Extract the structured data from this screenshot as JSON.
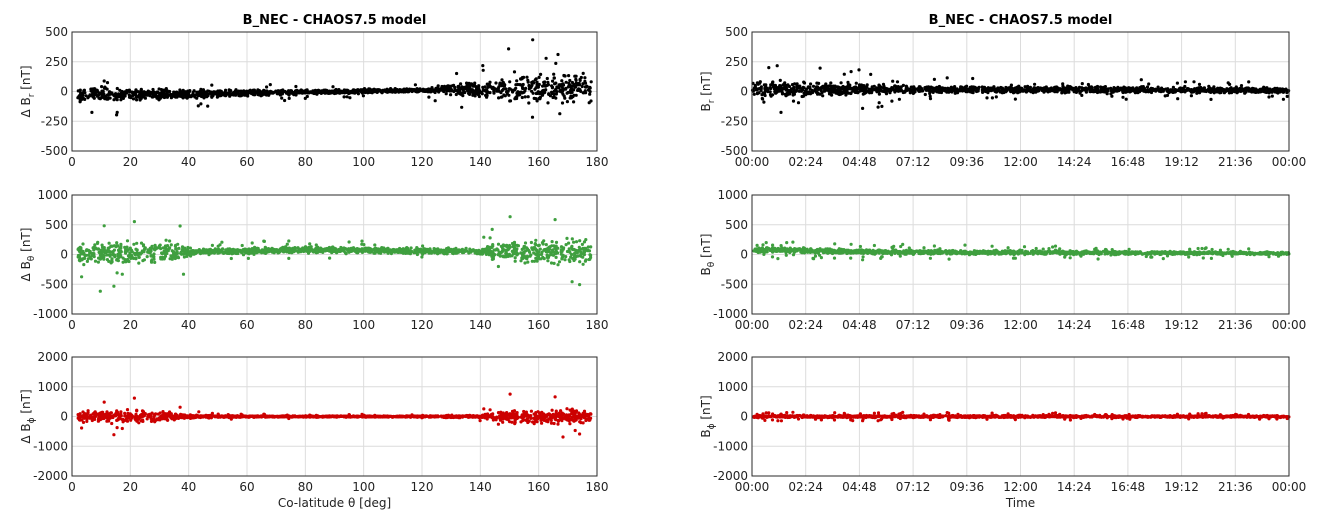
{
  "chart_data": [
    {
      "type": "scatter",
      "panel": "left-1",
      "title": "B_NEC - CHAOS7.5 model",
      "ylabel_main": "Δ B",
      "ylabel_sub": "r",
      "ylabel_unit": " [nT]",
      "xlabel": "",
      "xlim": [
        0,
        180
      ],
      "ylim": [
        -500,
        500
      ],
      "xticks": [
        "0",
        "20",
        "40",
        "60",
        "80",
        "100",
        "120",
        "140",
        "160",
        "180"
      ],
      "yticks": [
        "-500",
        "-250",
        "0",
        "250",
        "500"
      ],
      "color": "#000000",
      "spread": [
        [
          2,
          80
        ],
        [
          40,
          50
        ],
        [
          60,
          30
        ],
        [
          120,
          20
        ],
        [
          140,
          90
        ],
        [
          150,
          140
        ],
        [
          160,
          170
        ],
        [
          180,
          140
        ]
      ],
      "bias": [
        [
          2,
          -30
        ],
        [
          40,
          -20
        ],
        [
          120,
          10
        ],
        [
          180,
          30
        ]
      ],
      "spike_prob": 0.02,
      "x_range": [
        2,
        178
      ]
    },
    {
      "type": "scatter",
      "panel": "left-2",
      "title": "",
      "ylabel_main": "Δ B",
      "ylabel_sub": "θ",
      "ylabel_unit": " [nT]",
      "xlabel": "",
      "xlim": [
        0,
        180
      ],
      "ylim": [
        -1000,
        1000
      ],
      "xticks": [
        "0",
        "20",
        "40",
        "60",
        "80",
        "100",
        "120",
        "140",
        "160",
        "180"
      ],
      "yticks": [
        "-1000",
        "-500",
        "0",
        "500",
        "1000"
      ],
      "color": "#3f9f3f",
      "spread": [
        [
          2,
          260
        ],
        [
          20,
          250
        ],
        [
          35,
          220
        ],
        [
          42,
          60
        ],
        [
          140,
          70
        ],
        [
          145,
          200
        ],
        [
          160,
          300
        ],
        [
          178,
          250
        ]
      ],
      "bias": [
        [
          2,
          20
        ],
        [
          40,
          40
        ],
        [
          80,
          80
        ],
        [
          140,
          50
        ],
        [
          178,
          40
        ]
      ],
      "spike_prob": 0.02,
      "x_range": [
        2,
        178
      ]
    },
    {
      "type": "scatter",
      "panel": "left-3",
      "title": "",
      "ylabel_main": "Δ B",
      "ylabel_sub": "ϕ",
      "ylabel_unit": " [nT]",
      "xlabel": "Co-latitude θ [deg]",
      "xlim": [
        0,
        180
      ],
      "ylim": [
        -2000,
        2000
      ],
      "xticks": [
        "0",
        "20",
        "40",
        "60",
        "80",
        "100",
        "120",
        "140",
        "160",
        "180"
      ],
      "yticks": [
        "-2000",
        "-1000",
        "0",
        "1000",
        "2000"
      ],
      "color": "#cc0000",
      "spread": [
        [
          2,
          250
        ],
        [
          25,
          300
        ],
        [
          40,
          80
        ],
        [
          60,
          30
        ],
        [
          120,
          30
        ],
        [
          140,
          80
        ],
        [
          150,
          300
        ],
        [
          165,
          350
        ],
        [
          178,
          250
        ]
      ],
      "bias": [
        [
          2,
          0
        ],
        [
          180,
          0
        ]
      ],
      "spike_prob": 0.02,
      "x_range": [
        2,
        178
      ]
    },
    {
      "type": "scatter",
      "panel": "right-1",
      "title": "B_NEC - CHAOS7.5 model",
      "ylabel_main": "B",
      "ylabel_sub": "r",
      "ylabel_unit": " [nT]",
      "xlabel": "",
      "xlim": [
        0,
        24
      ],
      "ylim": [
        -500,
        500
      ],
      "xticks": [
        "00:00",
        "02:24",
        "04:48",
        "07:12",
        "09:36",
        "12:00",
        "14:24",
        "16:48",
        "19:12",
        "21:36",
        "00:00"
      ],
      "yticks": [
        "-500",
        "-250",
        "0",
        "250",
        "500"
      ],
      "color": "#000000",
      "spread": [
        [
          0,
          90
        ],
        [
          4,
          70
        ],
        [
          8,
          40
        ],
        [
          24,
          30
        ]
      ],
      "bias": [
        [
          0,
          20
        ],
        [
          24,
          10
        ]
      ],
      "spike_prob": 0.03,
      "x_range": [
        0,
        24
      ]
    },
    {
      "type": "scatter",
      "panel": "right-2",
      "title": "",
      "ylabel_main": "B",
      "ylabel_sub": "θ",
      "ylabel_unit": " [nT]",
      "xlabel": "",
      "xlim": [
        0,
        24
      ],
      "ylim": [
        -1000,
        1000
      ],
      "xticks": [
        "00:00",
        "02:24",
        "04:48",
        "07:12",
        "09:36",
        "12:00",
        "14:24",
        "16:48",
        "19:12",
        "21:36",
        "00:00"
      ],
      "yticks": [
        "-1000",
        "-500",
        "0",
        "500",
        "1000"
      ],
      "color": "#3f9f3f",
      "spread": [
        [
          0,
          60
        ],
        [
          24,
          30
        ]
      ],
      "bias": [
        [
          0,
          80
        ],
        [
          6,
          40
        ],
        [
          24,
          20
        ]
      ],
      "spike_prob": 0.05,
      "x_range": [
        0,
        24
      ]
    },
    {
      "type": "scatter",
      "panel": "right-3",
      "title": "",
      "ylabel_main": "B",
      "ylabel_sub": "ϕ",
      "ylabel_unit": " [nT]",
      "xlabel": "Time",
      "xlim": [
        0,
        24
      ],
      "ylim": [
        -2000,
        2000
      ],
      "xticks": [
        "00:00",
        "02:24",
        "04:48",
        "07:12",
        "09:36",
        "12:00",
        "14:24",
        "16:48",
        "19:12",
        "21:36",
        "00:00"
      ],
      "yticks": [
        "-2000",
        "-1000",
        "0",
        "1000",
        "2000"
      ],
      "color": "#cc0000",
      "spread": [
        [
          0,
          60
        ],
        [
          24,
          40
        ]
      ],
      "bias": [
        [
          0,
          0
        ],
        [
          24,
          0
        ]
      ],
      "spike_prob": 0.05,
      "x_range": [
        0,
        24
      ]
    }
  ]
}
